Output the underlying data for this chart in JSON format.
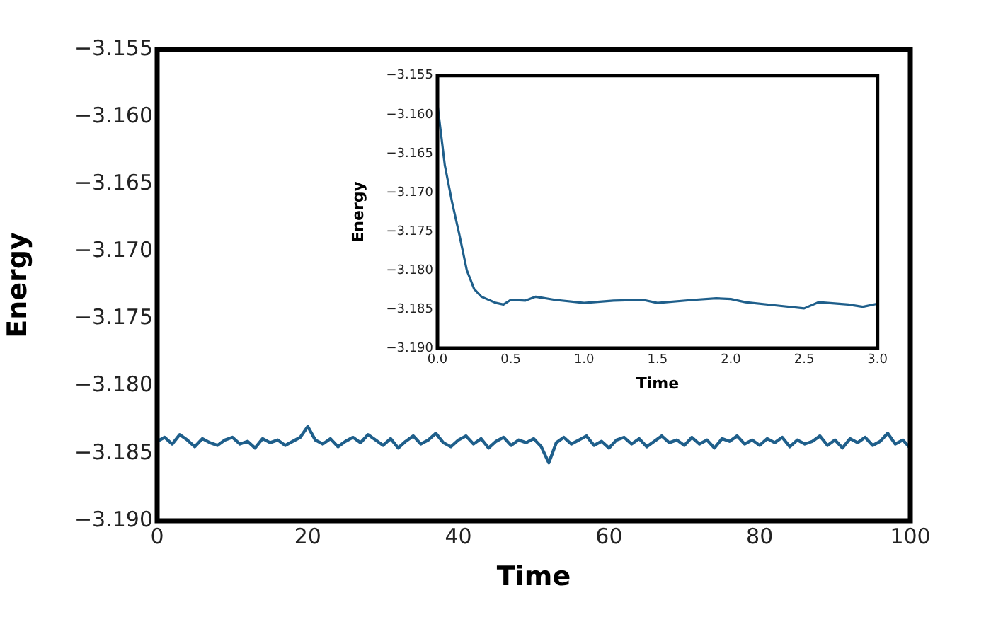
{
  "chart_data": [
    {
      "type": "line",
      "xlabel": "Time",
      "ylabel": "Energy",
      "x": [
        0,
        1,
        2,
        3,
        4,
        5,
        6,
        7,
        8,
        9,
        10,
        11,
        12,
        13,
        14,
        15,
        16,
        17,
        18,
        19,
        20,
        21,
        22,
        23,
        24,
        25,
        26,
        27,
        28,
        29,
        30,
        31,
        32,
        33,
        34,
        35,
        36,
        37,
        38,
        39,
        40,
        41,
        42,
        43,
        44,
        45,
        46,
        47,
        48,
        49,
        50,
        51,
        52,
        53,
        54,
        55,
        56,
        57,
        58,
        59,
        60,
        61,
        62,
        63,
        64,
        65,
        66,
        67,
        68,
        69,
        70,
        71,
        72,
        73,
        74,
        75,
        76,
        77,
        78,
        79,
        80,
        81,
        82,
        83,
        84,
        85,
        86,
        87,
        88,
        89,
        90,
        91,
        92,
        93,
        94,
        95,
        96,
        97,
        98,
        99,
        100
      ],
      "series": [
        {
          "color": "#1f5f8b",
          "values": [
            -3.1841,
            -3.1838,
            -3.1843,
            -3.1836,
            -3.184,
            -3.1845,
            -3.1839,
            -3.1842,
            -3.1844,
            -3.184,
            -3.1838,
            -3.1843,
            -3.1841,
            -3.1846,
            -3.1839,
            -3.1842,
            -3.184,
            -3.1844,
            -3.1841,
            -3.1838,
            -3.183,
            -3.184,
            -3.1843,
            -3.1839,
            -3.1845,
            -3.1841,
            -3.1838,
            -3.1842,
            -3.1836,
            -3.184,
            -3.1844,
            -3.1839,
            -3.1846,
            -3.1841,
            -3.1837,
            -3.1843,
            -3.184,
            -3.1835,
            -3.1842,
            -3.1845,
            -3.184,
            -3.1837,
            -3.1843,
            -3.1839,
            -3.1846,
            -3.1841,
            -3.1838,
            -3.1844,
            -3.184,
            -3.1842,
            -3.1839,
            -3.1845,
            -3.1857,
            -3.1842,
            -3.1838,
            -3.1843,
            -3.184,
            -3.1837,
            -3.1844,
            -3.1841,
            -3.1846,
            -3.184,
            -3.1838,
            -3.1843,
            -3.1839,
            -3.1845,
            -3.1841,
            -3.1837,
            -3.1842,
            -3.184,
            -3.1844,
            -3.1838,
            -3.1843,
            -3.184,
            -3.1846,
            -3.1839,
            -3.1841,
            -3.1837,
            -3.1843,
            -3.184,
            -3.1844,
            -3.1839,
            -3.1842,
            -3.1838,
            -3.1845,
            -3.184,
            -3.1843,
            -3.1841,
            -3.1837,
            -3.1844,
            -3.184,
            -3.1846,
            -3.1839,
            -3.1842,
            -3.1838,
            -3.1844,
            -3.1841,
            -3.1835,
            -3.1843,
            -3.184,
            -3.1846
          ]
        }
      ],
      "xlim": [
        0,
        100
      ],
      "xticks": [
        0,
        20,
        40,
        60,
        80,
        100
      ],
      "ylim": [
        -3.19,
        -3.155
      ],
      "yticks": [
        {
          "value": -3.19,
          "label": "−3.190"
        },
        {
          "value": -3.185,
          "label": "−3.185"
        },
        {
          "value": -3.18,
          "label": "−3.180"
        },
        {
          "value": -3.175,
          "label": "−3.175"
        },
        {
          "value": -3.17,
          "label": "−3.170"
        },
        {
          "value": -3.165,
          "label": "−3.165"
        },
        {
          "value": -3.16,
          "label": "−3.160"
        },
        {
          "value": -3.155,
          "label": "−3.155"
        }
      ],
      "grid": false,
      "legend": false
    },
    {
      "type": "line",
      "xlabel": "Time",
      "ylabel": "Energy",
      "x": [
        0,
        0.05,
        0.1,
        0.15,
        0.2,
        0.25,
        0.3,
        0.4,
        0.45,
        0.5,
        0.6,
        0.67,
        0.8,
        1.0,
        1.2,
        1.4,
        1.5,
        1.75,
        1.9,
        2.0,
        2.1,
        2.3,
        2.5,
        2.6,
        2.8,
        2.9,
        3.0
      ],
      "series": [
        {
          "color": "#1f5f8b",
          "values": [
            -3.1587,
            -3.1665,
            -3.1713,
            -3.1755,
            -3.18,
            -3.1824,
            -3.1834,
            -3.1842,
            -3.1844,
            -3.1838,
            -3.1839,
            -3.1834,
            -3.1838,
            -3.1842,
            -3.1839,
            -3.1838,
            -3.1842,
            -3.1838,
            -3.1836,
            -3.1837,
            -3.1841,
            -3.1845,
            -3.1849,
            -3.1841,
            -3.1844,
            -3.1847,
            -3.1843
          ]
        }
      ],
      "xlim": [
        0,
        3
      ],
      "xticks": [
        {
          "value": 0,
          "label": "0.0"
        },
        {
          "value": 0.5,
          "label": "0.5"
        },
        {
          "value": 1,
          "label": "1.0"
        },
        {
          "value": 1.5,
          "label": "1.5"
        },
        {
          "value": 2,
          "label": "2.0"
        },
        {
          "value": 2.5,
          "label": "2.5"
        },
        {
          "value": 3,
          "label": "3.0"
        }
      ],
      "ylim": [
        -3.19,
        -3.155
      ],
      "yticks": [
        {
          "value": -3.19,
          "label": "−3.190"
        },
        {
          "value": -3.185,
          "label": "−3.185"
        },
        {
          "value": -3.18,
          "label": "−3.180"
        },
        {
          "value": -3.175,
          "label": "−3.175"
        },
        {
          "value": -3.17,
          "label": "−3.170"
        },
        {
          "value": -3.165,
          "label": "−3.165"
        },
        {
          "value": -3.16,
          "label": "−3.160"
        },
        {
          "value": -3.155,
          "label": "−3.155"
        }
      ],
      "grid": false,
      "legend": false
    }
  ]
}
